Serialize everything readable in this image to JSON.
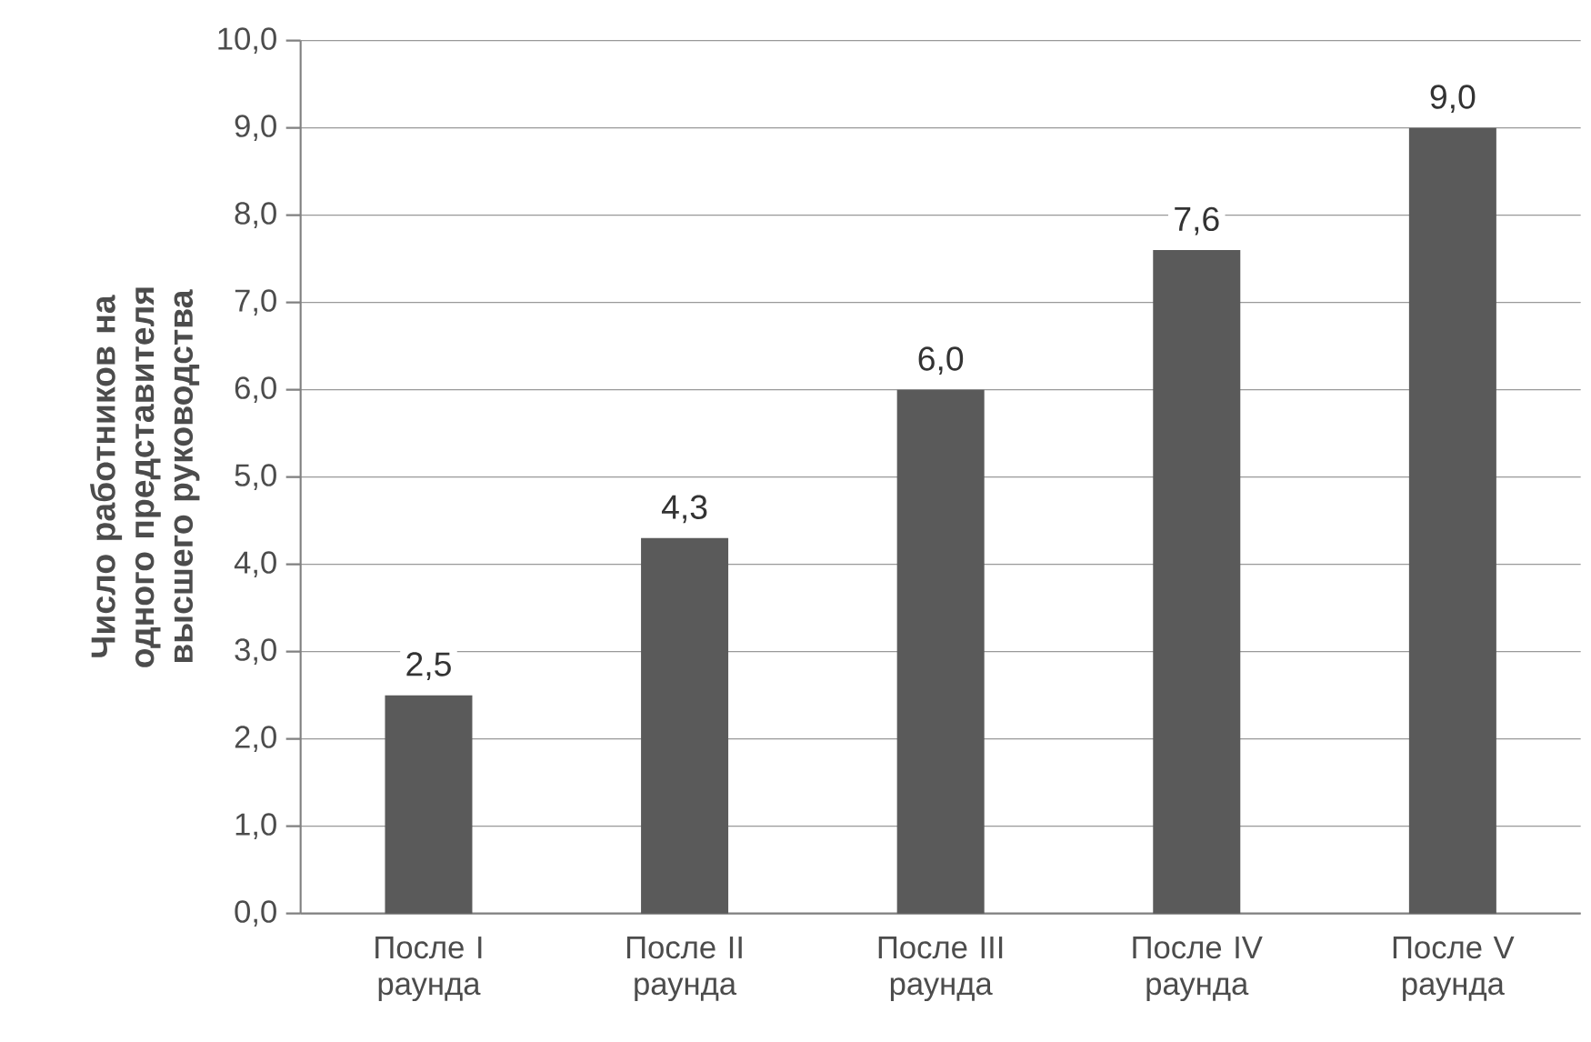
{
  "chart_data": {
    "type": "bar",
    "ylabel": "Число работников на одного представителя высшего руководства",
    "categories": [
      "После I раунда",
      "После II раунда",
      "После III раунда",
      "После IV раунда",
      "После V раунда"
    ],
    "values": [
      2.5,
      4.3,
      6.0,
      7.6,
      9.0
    ],
    "value_labels": [
      "2,5",
      "4,3",
      "6,0",
      "7,6",
      "9,0"
    ],
    "color": "#5a5a5a",
    "ylim": [
      0,
      10
    ],
    "yticks": [
      {
        "value": 0,
        "label": "0,0"
      },
      {
        "value": 1,
        "label": "1,0"
      },
      {
        "value": 2,
        "label": "2,0"
      },
      {
        "value": 3,
        "label": "3,0"
      },
      {
        "value": 4,
        "label": "4,0"
      },
      {
        "value": 5,
        "label": "5,0"
      },
      {
        "value": 6,
        "label": "6,0"
      },
      {
        "value": 7,
        "label": "7,0"
      },
      {
        "value": 8,
        "label": "8,0"
      },
      {
        "value": 9,
        "label": "9,0"
      },
      {
        "value": 10,
        "label": "10,0"
      }
    ],
    "grid": "y"
  }
}
